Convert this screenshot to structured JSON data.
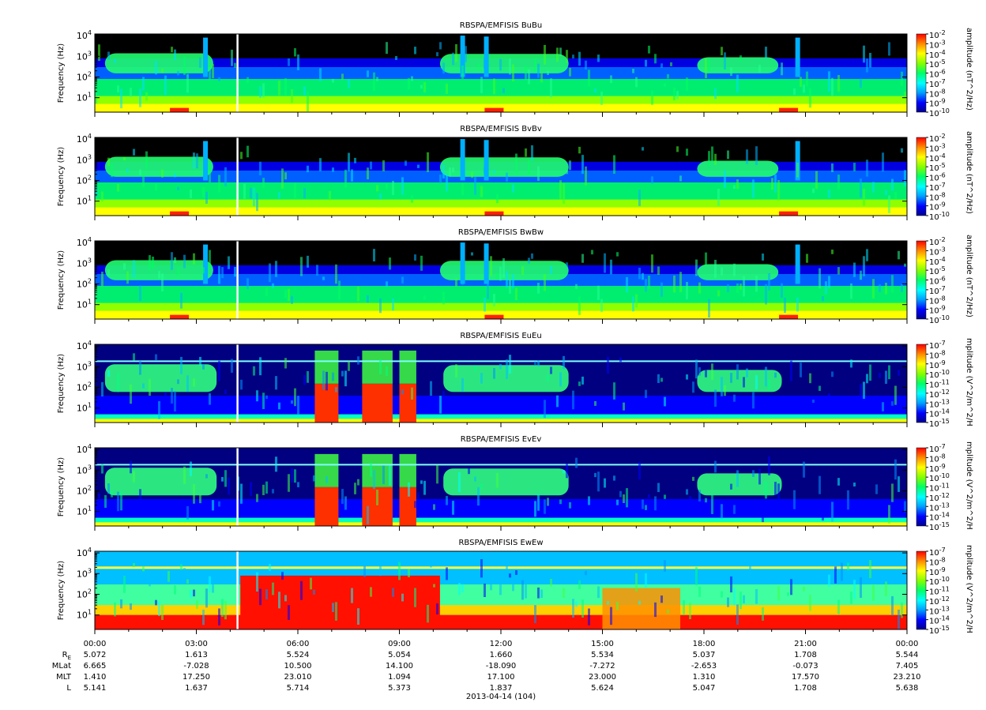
{
  "figure": {
    "date_label": "2013-04-14 (104)",
    "ephemeris": {
      "row_labels": [
        "R",
        "MLat",
        "MLT",
        "L"
      ],
      "re_subscript": "E",
      "times": [
        "00:00",
        "03:00",
        "06:00",
        "09:00",
        "12:00",
        "15:00",
        "18:00",
        "21:00",
        "00:00"
      ],
      "rows": [
        [
          "5.072",
          "1.613",
          "5.524",
          "5.054",
          "1.660",
          "5.534",
          "5.037",
          "1.708",
          "5.544"
        ],
        [
          "6.665",
          "-7.028",
          "10.500",
          "14.100",
          "-18.090",
          "-7.272",
          "-2.653",
          "-0.073",
          "7.405"
        ],
        [
          "1.410",
          "17.250",
          "23.010",
          "1.094",
          "17.100",
          "23.000",
          "1.310",
          "17.570",
          "23.210"
        ],
        [
          "5.141",
          "1.637",
          "5.714",
          "5.373",
          "1.837",
          "5.624",
          "5.047",
          "1.708",
          "5.638"
        ]
      ]
    }
  },
  "chart_data": [
    {
      "type": "heatmap",
      "title": "RBSPA/EMFISIS  BuBu",
      "ylabel": "Frequency (Hz)",
      "y_scale": "log",
      "ylim": [
        2,
        12000
      ],
      "y_ticks": [
        "10",
        "10",
        "10",
        "10"
      ],
      "y_tick_exponents": [
        "1",
        "2",
        "3",
        "4"
      ],
      "x_ticks": [
        "00:00",
        "03:00",
        "06:00",
        "09:00",
        "12:00",
        "15:00",
        "18:00",
        "21:00",
        "00:00"
      ],
      "colorbar": {
        "label": "amplitude (nT^2/Hz)",
        "ticks": [
          "10",
          "10",
          "10",
          "10",
          "10",
          "10",
          "10",
          "10",
          "10"
        ],
        "exponents": [
          "-2",
          "-3",
          "-4",
          "-5",
          "-6",
          "-7",
          "-8",
          "-9",
          "-10"
        ]
      },
      "data_gap_time": "04:13"
    },
    {
      "type": "heatmap",
      "title": "RBSPA/EMFISIS  BvBv",
      "ylabel": "Frequency (Hz)",
      "y_scale": "log",
      "ylim": [
        2,
        12000
      ],
      "y_ticks": [
        "10",
        "10",
        "10",
        "10"
      ],
      "y_tick_exponents": [
        "1",
        "2",
        "3",
        "4"
      ],
      "x_ticks": [
        "00:00",
        "03:00",
        "06:00",
        "09:00",
        "12:00",
        "15:00",
        "18:00",
        "21:00",
        "00:00"
      ],
      "colorbar": {
        "label": "amplitude (nT^2/Hz)",
        "ticks": [
          "10",
          "10",
          "10",
          "10",
          "10",
          "10",
          "10",
          "10",
          "10"
        ],
        "exponents": [
          "-2",
          "-3",
          "-4",
          "-5",
          "-6",
          "-7",
          "-8",
          "-9",
          "-10"
        ]
      },
      "data_gap_time": "04:13"
    },
    {
      "type": "heatmap",
      "title": "RBSPA/EMFISIS  BwBw",
      "ylabel": "Frequency (Hz)",
      "y_scale": "log",
      "ylim": [
        2,
        12000
      ],
      "y_ticks": [
        "10",
        "10",
        "10",
        "10"
      ],
      "y_tick_exponents": [
        "1",
        "2",
        "3",
        "4"
      ],
      "x_ticks": [
        "00:00",
        "03:00",
        "06:00",
        "09:00",
        "12:00",
        "15:00",
        "18:00",
        "21:00",
        "00:00"
      ],
      "colorbar": {
        "label": "amplitude (nT^2/Hz)",
        "ticks": [
          "10",
          "10",
          "10",
          "10",
          "10",
          "10",
          "10",
          "10",
          "10"
        ],
        "exponents": [
          "-2",
          "-3",
          "-4",
          "-5",
          "-6",
          "-7",
          "-8",
          "-9",
          "-10"
        ]
      },
      "data_gap_time": "04:13"
    },
    {
      "type": "heatmap",
      "title": "RBSPA/EMFISIS  EuEu",
      "ylabel": "Frequency (Hz)",
      "y_scale": "log",
      "ylim": [
        2,
        12000
      ],
      "y_ticks": [
        "10",
        "10",
        "10",
        "10"
      ],
      "y_tick_exponents": [
        "1",
        "2",
        "3",
        "4"
      ],
      "x_ticks": [
        "00:00",
        "03:00",
        "06:00",
        "09:00",
        "12:00",
        "15:00",
        "18:00",
        "21:00",
        "00:00"
      ],
      "colorbar": {
        "label": "mplitude (V^2/m^2/H",
        "ticks": [
          "10",
          "10",
          "10",
          "10",
          "10",
          "10",
          "10",
          "10",
          "10"
        ],
        "exponents": [
          "-7",
          "-8",
          "-9",
          "-10",
          "-11",
          "-12",
          "-13",
          "-14",
          "-15"
        ]
      },
      "data_gap_time": "04:13"
    },
    {
      "type": "heatmap",
      "title": "RBSPA/EMFISIS  EvEv",
      "ylabel": "Frequency (Hz)",
      "y_scale": "log",
      "ylim": [
        2,
        12000
      ],
      "y_ticks": [
        "10",
        "10",
        "10",
        "10"
      ],
      "y_tick_exponents": [
        "1",
        "2",
        "3",
        "4"
      ],
      "x_ticks": [
        "00:00",
        "03:00",
        "06:00",
        "09:00",
        "12:00",
        "15:00",
        "18:00",
        "21:00",
        "00:00"
      ],
      "colorbar": {
        "label": "mplitude (V^2/m^2/H",
        "ticks": [
          "10",
          "10",
          "10",
          "10",
          "10",
          "10",
          "10",
          "10",
          "10"
        ],
        "exponents": [
          "-7",
          "-8",
          "-9",
          "-10",
          "-11",
          "-12",
          "-13",
          "-14",
          "-15"
        ]
      },
      "data_gap_time": "04:13"
    },
    {
      "type": "heatmap",
      "title": "RBSPA/EMFISIS  EwEw",
      "ylabel": "Frequency (Hz)",
      "y_scale": "log",
      "ylim": [
        2,
        12000
      ],
      "y_ticks": [
        "10",
        "10",
        "10",
        "10"
      ],
      "y_tick_exponents": [
        "1",
        "2",
        "3",
        "4"
      ],
      "x_ticks": [
        "00:00",
        "03:00",
        "06:00",
        "09:00",
        "12:00",
        "15:00",
        "18:00",
        "21:00",
        "00:00"
      ],
      "colorbar": {
        "label": "mplitude (V^2/m^2/H",
        "ticks": [
          "10",
          "10",
          "10",
          "10",
          "10",
          "10",
          "10",
          "10",
          "10"
        ],
        "exponents": [
          "-7",
          "-8",
          "-9",
          "-10",
          "-11",
          "-12",
          "-13",
          "-14",
          "-15"
        ]
      },
      "data_gap_time": "04:13"
    }
  ]
}
